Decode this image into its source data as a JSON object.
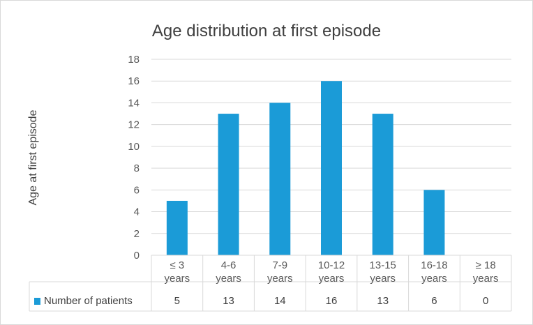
{
  "chart_data": {
    "type": "bar",
    "title": "Age distribution at first episode",
    "xlabel": "",
    "ylabel": "Age at first episode",
    "categories": [
      [
        "≤ 3",
        "years"
      ],
      [
        "4-6",
        "years"
      ],
      [
        "7-9",
        "years"
      ],
      [
        "10-12",
        "years"
      ],
      [
        "13-15",
        "years"
      ],
      [
        "16-18",
        "years"
      ],
      [
        "≥ 18",
        "years"
      ]
    ],
    "series": [
      {
        "name": "Number of patients",
        "values": [
          5,
          13,
          14,
          16,
          13,
          6,
          0
        ]
      }
    ],
    "ylim": [
      0,
      18
    ],
    "yticks": [
      0,
      2,
      4,
      6,
      8,
      10,
      12,
      14,
      16,
      18
    ],
    "grid": true,
    "legend": "data-table-left",
    "data_table": true,
    "colors": {
      "bar": "#1b9bd7",
      "grid": "#d9d9d9",
      "border": "#d9d9d9",
      "text": "#595959"
    }
  }
}
